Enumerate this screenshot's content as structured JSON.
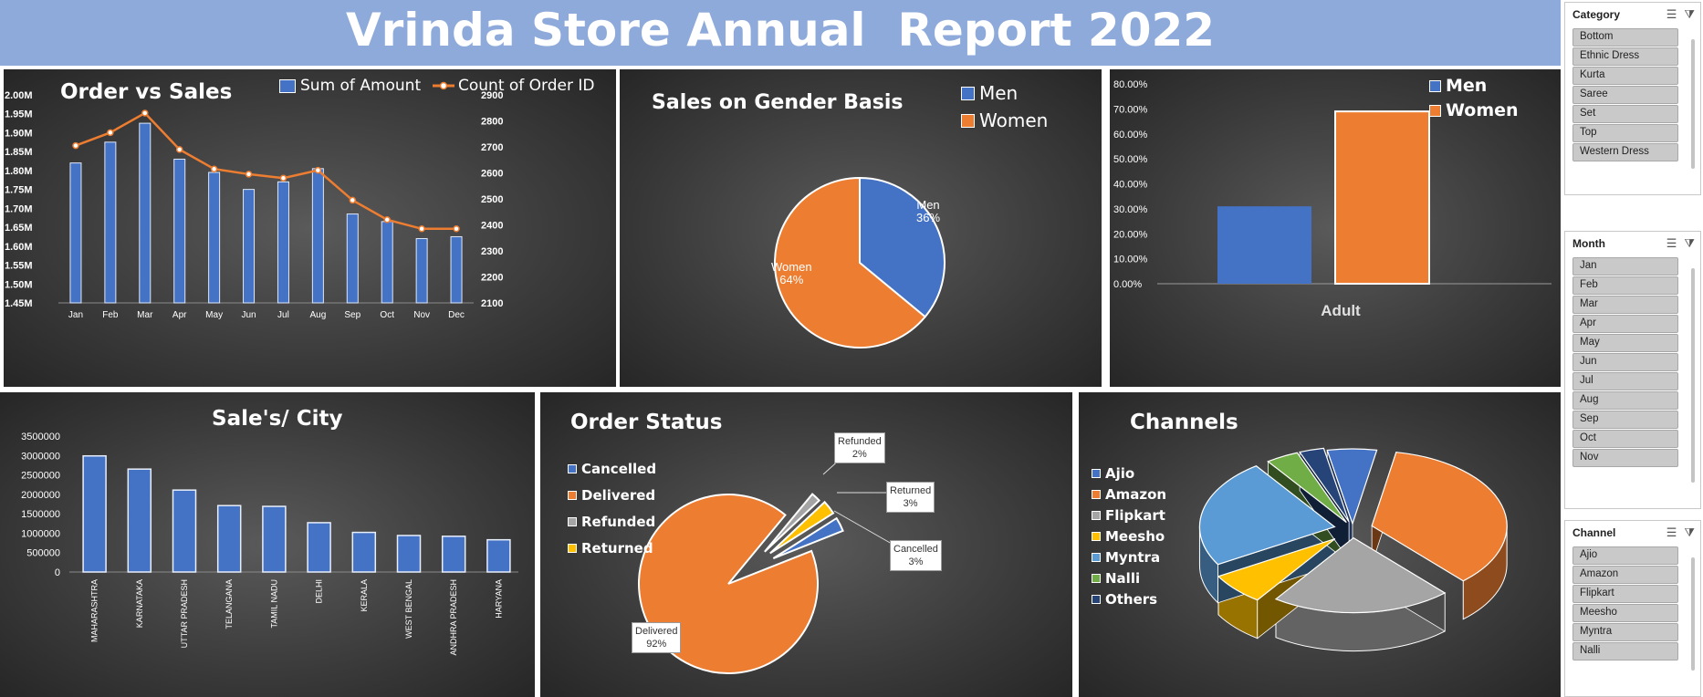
{
  "report": {
    "title": "Vrinda Store Annual  Report 2022"
  },
  "colors": {
    "blue": "#4472c4",
    "orange": "#ed7d31",
    "gray": "#a5a5a5",
    "yellow": "#ffc000",
    "lightblue": "#5b9bd5",
    "green": "#70ad47",
    "navy": "#264478",
    "banner": "#8eaadb"
  },
  "chart_data": [
    {
      "id": "order_vs_sales",
      "type": "bar",
      "title": "Order vs Sales",
      "categories": [
        "Jan",
        "Feb",
        "Mar",
        "Apr",
        "May",
        "Jun",
        "Jul",
        "Aug",
        "Sep",
        "Oct",
        "Nov",
        "Dec"
      ],
      "series": [
        {
          "name": "Sum of Amount",
          "type": "bar",
          "axis": "left",
          "values": [
            1820000,
            1875000,
            1925000,
            1830000,
            1795000,
            1750000,
            1770000,
            1805000,
            1685000,
            1665000,
            1620000,
            1625000
          ]
        },
        {
          "name": "Count of Order ID",
          "type": "line",
          "axis": "right",
          "values": [
            2705,
            2755,
            2830,
            2690,
            2615,
            2595,
            2580,
            2610,
            2495,
            2420,
            2385,
            2385
          ]
        }
      ],
      "y_left_ticks": [
        "2.00M",
        "1.95M",
        "1.90M",
        "1.85M",
        "1.80M",
        "1.75M",
        "1.70M",
        "1.65M",
        "1.60M",
        "1.55M",
        "1.50M",
        "1.45M"
      ],
      "y_right_ticks": [
        "2900",
        "2800",
        "2700",
        "2600",
        "2500",
        "2400",
        "2300",
        "2200",
        "2100"
      ],
      "ylim_left": [
        1450000,
        2000000
      ],
      "ylim_right": [
        2100,
        2900
      ],
      "legend": "top-right"
    },
    {
      "id": "gender_pie",
      "type": "pie",
      "title": "Sales on Gender Basis",
      "labels": [
        "Men",
        "Women"
      ],
      "values": [
        36,
        64
      ],
      "data_labels": [
        "Men\n36%",
        "Women\n64%"
      ],
      "legend": "top-right"
    },
    {
      "id": "adult_gender",
      "type": "bar",
      "title": "",
      "categories": [
        "Adult"
      ],
      "series": [
        {
          "name": "Men",
          "values": [
            0.31
          ]
        },
        {
          "name": "Women",
          "values": [
            0.69
          ]
        }
      ],
      "y_ticks": [
        "80.00%",
        "70.00%",
        "60.00%",
        "50.00%",
        "40.00%",
        "30.00%",
        "20.00%",
        "10.00%",
        "0.00%"
      ],
      "ylim": [
        0,
        0.8
      ],
      "legend": "top-right"
    },
    {
      "id": "sales_city",
      "type": "bar",
      "title": "Sale's/ City",
      "categories": [
        "MAHARASHTRA",
        "KARNATAKA",
        "UTTAR PRADESH",
        "TELANGANA",
        "TAMIL NADU",
        "DELHI",
        "KERALA",
        "WEST BENGAL",
        "ANDHRA PRADESH",
        "HARYANA"
      ],
      "values": [
        2990000,
        2650000,
        2110000,
        1710000,
        1690000,
        1270000,
        1020000,
        940000,
        920000,
        830000
      ],
      "y_ticks": [
        "3500000",
        "3000000",
        "2500000",
        "2000000",
        "1500000",
        "1000000",
        "500000",
        "0"
      ],
      "ylim": [
        0,
        3500000
      ]
    },
    {
      "id": "order_status",
      "type": "pie",
      "title": "Order Status",
      "labels": [
        "Cancelled",
        "Delivered",
        "Refunded",
        "Returned"
      ],
      "values": [
        3,
        92,
        2,
        3
      ],
      "data_labels": [
        "Cancelled\n3%",
        "Delivered\n92%",
        "Refunded\n2%",
        "Returned\n3%"
      ],
      "legend": "left"
    },
    {
      "id": "channels",
      "type": "pie",
      "title": "Channels",
      "labels": [
        "Ajio",
        "Amazon",
        "Flipkart",
        "Meesho",
        "Myntra",
        "Nalli",
        "Others"
      ],
      "values": [
        6,
        36,
        22,
        7,
        24,
        4,
        3
      ],
      "legend": "left"
    }
  ],
  "slicers": [
    {
      "title": "Category",
      "items": [
        "Bottom",
        "Ethnic Dress",
        "Kurta",
        "Saree",
        "Set",
        "Top",
        "Western Dress"
      ]
    },
    {
      "title": "Month",
      "items": [
        "Jan",
        "Feb",
        "Mar",
        "Apr",
        "May",
        "Jun",
        "Jul",
        "Aug",
        "Sep",
        "Oct",
        "Nov"
      ]
    },
    {
      "title": "Channel",
      "items": [
        "Ajio",
        "Amazon",
        "Flipkart",
        "Meesho",
        "Myntra",
        "Nalli"
      ]
    }
  ]
}
